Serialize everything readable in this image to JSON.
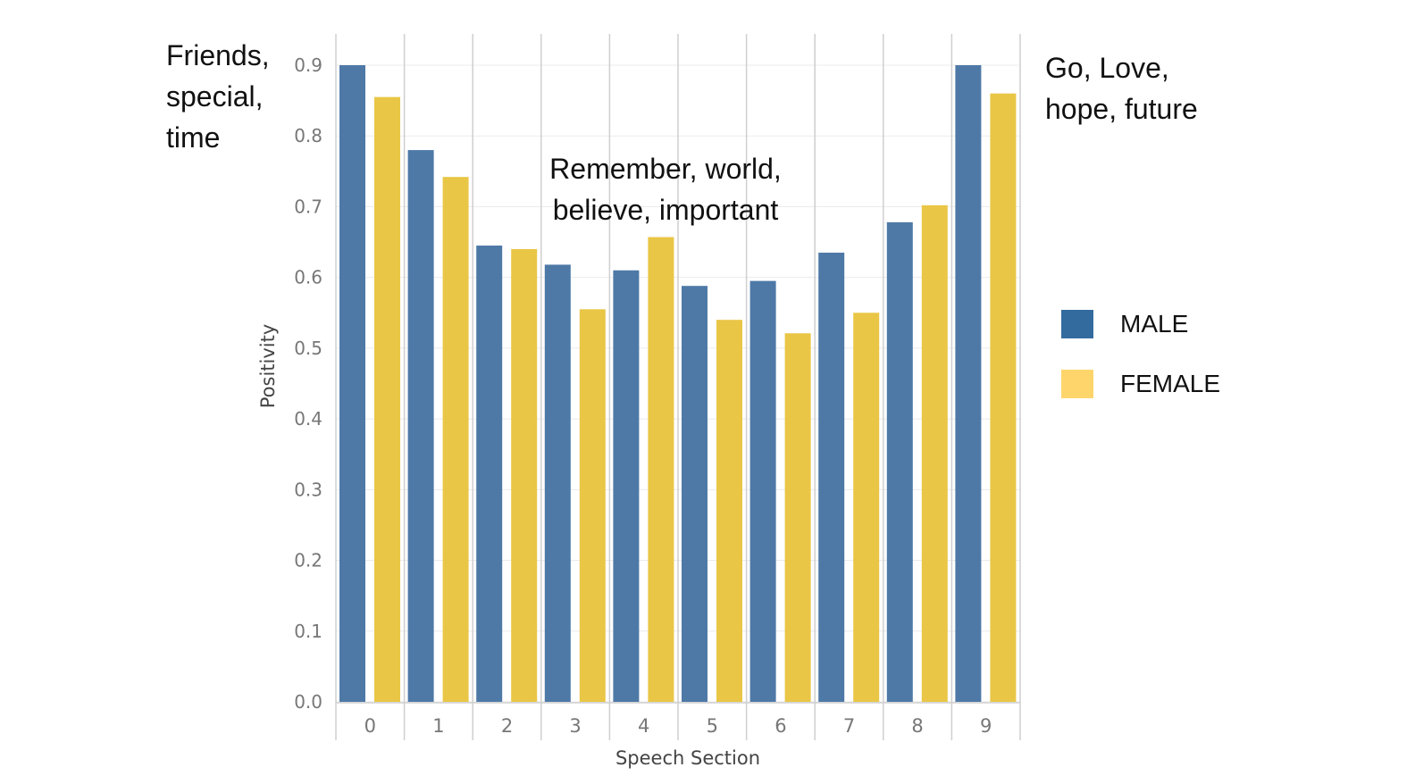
{
  "chart_data": {
    "type": "bar",
    "categories": [
      "0",
      "1",
      "2",
      "3",
      "4",
      "5",
      "6",
      "7",
      "8",
      "9"
    ],
    "series": [
      {
        "name": "MALE",
        "color": "#4e79a7",
        "values": [
          0.9,
          0.78,
          0.645,
          0.618,
          0.61,
          0.588,
          0.595,
          0.635,
          0.678,
          0.9
        ]
      },
      {
        "name": "FEMALE",
        "color": "#e9c646",
        "values": [
          0.855,
          0.742,
          0.64,
          0.555,
          0.657,
          0.54,
          0.521,
          0.55,
          0.702,
          0.86
        ]
      }
    ],
    "xlabel": "Speech Section",
    "ylabel": "Positivity",
    "ylim": [
      0,
      0.9
    ],
    "yticks": [
      "0.0",
      "0.1",
      "0.2",
      "0.3",
      "0.4",
      "0.5",
      "0.6",
      "0.7",
      "0.8",
      "0.9"
    ],
    "grid": true,
    "legend_position": "right",
    "legend": [
      {
        "label": "MALE",
        "color": "#336b9f"
      },
      {
        "label": "FEMALE",
        "color": "#fdd56b"
      }
    ],
    "annotations": {
      "left": "Friends,\nspecial,\ntime",
      "middle": "Remember, world,\nbelieve, important",
      "right": "Go, Love,\nhope, future"
    }
  }
}
